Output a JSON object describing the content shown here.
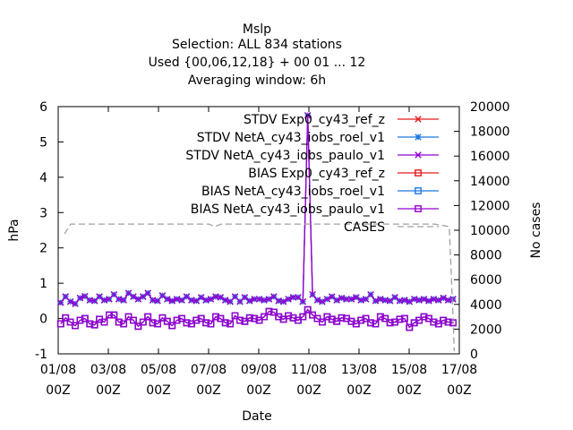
{
  "chart_data": {
    "type": "line",
    "title": "Mslp",
    "subtitle_lines": [
      "Selection: ALL    834 stations",
      "Used {00,06,12,18} + 00 01 ... 12",
      "Averaging window:  6h"
    ],
    "xlabel": "Date",
    "ylabel": "hPa",
    "y2label": "No cases",
    "x_ticks": [
      {
        "d": 0,
        "line1": "01/08",
        "line2": "00Z"
      },
      {
        "d": 2,
        "line1": "03/08",
        "line2": "00Z"
      },
      {
        "d": 4,
        "line1": "05/08",
        "line2": "00Z"
      },
      {
        "d": 6,
        "line1": "07/08",
        "line2": "00Z"
      },
      {
        "d": 8,
        "line1": "09/08",
        "line2": "00Z"
      },
      {
        "d": 10,
        "line1": "11/08",
        "line2": "00Z"
      },
      {
        "d": 12,
        "line1": "13/08",
        "line2": "00Z"
      },
      {
        "d": 14,
        "line1": "15/08",
        "line2": "00Z"
      },
      {
        "d": 16,
        "line1": "17/08",
        "line2": "00Z"
      }
    ],
    "xlim": [
      0,
      16
    ],
    "ylim": [
      -1,
      6
    ],
    "y_ticks": [
      "-1",
      "0",
      "1",
      "2",
      "3",
      "4",
      "5",
      "6"
    ],
    "y2lim": [
      0,
      20000
    ],
    "y2_ticks": [
      "0",
      "2000",
      "4000",
      "6000",
      "8000",
      "10000",
      "12000",
      "14000",
      "16000",
      "18000",
      "20000"
    ],
    "grid": false,
    "legend_position": "top-right inside",
    "series": [
      {
        "name": "STDV Exp0_cy43_ref_z",
        "color": "#e41a1c",
        "marker": "x",
        "axis": "y",
        "values": [
          0.45,
          0.62,
          0.48,
          0.42,
          0.58,
          0.63,
          0.52,
          0.5,
          0.62,
          0.52,
          0.55,
          0.68,
          0.55,
          0.52,
          0.72,
          0.62,
          0.55,
          0.62,
          0.72,
          0.52,
          0.5,
          0.65,
          0.55,
          0.5,
          0.55,
          0.52,
          0.62,
          0.52,
          0.5,
          0.6,
          0.52,
          0.55,
          0.62,
          0.6,
          0.52,
          0.48,
          0.62,
          0.48,
          0.6,
          0.5,
          0.55,
          0.55,
          0.52,
          0.55,
          0.62,
          0.5,
          0.48,
          0.55,
          0.6,
          0.6,
          0.48,
          5.75,
          0.68,
          0.52,
          0.48,
          0.55,
          0.62,
          0.52,
          0.58,
          0.55,
          0.55,
          0.6,
          0.52,
          0.55,
          0.68,
          0.5,
          0.55,
          0.52,
          0.5,
          0.6,
          0.5,
          0.52,
          0.48,
          0.55,
          0.52,
          0.55,
          0.5,
          0.55,
          0.52,
          0.58,
          0.52,
          0.55
        ]
      },
      {
        "name": "STDV NetA_cy43_iobs_roel_v1",
        "color": "#1f78e0",
        "marker": "*",
        "axis": "y",
        "values": [
          0.45,
          0.62,
          0.48,
          0.42,
          0.58,
          0.63,
          0.52,
          0.5,
          0.62,
          0.52,
          0.55,
          0.68,
          0.55,
          0.52,
          0.72,
          0.62,
          0.55,
          0.62,
          0.72,
          0.52,
          0.5,
          0.65,
          0.55,
          0.5,
          0.55,
          0.52,
          0.62,
          0.52,
          0.5,
          0.6,
          0.52,
          0.55,
          0.62,
          0.6,
          0.52,
          0.48,
          0.62,
          0.48,
          0.6,
          0.5,
          0.55,
          0.55,
          0.52,
          0.55,
          0.62,
          0.5,
          0.48,
          0.55,
          0.6,
          0.6,
          0.48,
          5.75,
          0.68,
          0.52,
          0.48,
          0.55,
          0.62,
          0.52,
          0.58,
          0.55,
          0.55,
          0.6,
          0.52,
          0.55,
          0.68,
          0.5,
          0.55,
          0.52,
          0.5,
          0.6,
          0.5,
          0.52,
          0.48,
          0.55,
          0.52,
          0.55,
          0.5,
          0.55,
          0.52,
          0.58,
          0.52,
          0.55
        ]
      },
      {
        "name": "STDV NetA_cy43_iobs_paulo_v1",
        "color": "#9400d3",
        "marker": "x",
        "axis": "y",
        "values": [
          0.45,
          0.62,
          0.48,
          0.42,
          0.58,
          0.63,
          0.52,
          0.5,
          0.62,
          0.52,
          0.55,
          0.68,
          0.55,
          0.52,
          0.72,
          0.62,
          0.55,
          0.62,
          0.72,
          0.52,
          0.5,
          0.65,
          0.55,
          0.5,
          0.55,
          0.52,
          0.62,
          0.52,
          0.5,
          0.6,
          0.52,
          0.55,
          0.62,
          0.6,
          0.52,
          0.48,
          0.62,
          0.48,
          0.6,
          0.5,
          0.55,
          0.55,
          0.52,
          0.55,
          0.62,
          0.5,
          0.48,
          0.55,
          0.6,
          0.6,
          0.48,
          5.75,
          0.68,
          0.52,
          0.48,
          0.55,
          0.62,
          0.52,
          0.58,
          0.55,
          0.55,
          0.6,
          0.52,
          0.55,
          0.68,
          0.5,
          0.55,
          0.52,
          0.5,
          0.6,
          0.5,
          0.52,
          0.48,
          0.55,
          0.52,
          0.55,
          0.5,
          0.55,
          0.52,
          0.58,
          0.52,
          0.55
        ]
      },
      {
        "name": "BIAS Exp0_cy43_ref_z",
        "color": "#e41a1c",
        "marker": "square",
        "axis": "y",
        "values": [
          -0.15,
          0.02,
          -0.1,
          -0.2,
          -0.05,
          0.0,
          -0.15,
          -0.18,
          -0.02,
          -0.1,
          0.1,
          0.1,
          -0.1,
          -0.15,
          0.05,
          -0.05,
          -0.22,
          -0.1,
          0.05,
          -0.12,
          -0.15,
          0.02,
          -0.08,
          -0.2,
          -0.05,
          0.0,
          -0.12,
          -0.15,
          -0.05,
          0.0,
          -0.12,
          -0.15,
          0.05,
          0.0,
          -0.12,
          -0.15,
          0.08,
          -0.05,
          -0.08,
          0.02,
          0.0,
          -0.05,
          0.05,
          0.2,
          0.18,
          0.05,
          -0.02,
          0.08,
          0.02,
          -0.05,
          0.05,
          0.25,
          0.1,
          0.0,
          -0.1,
          0.05,
          -0.02,
          -0.08,
          0.02,
          0.0,
          -0.08,
          -0.15,
          -0.05,
          0.0,
          -0.12,
          -0.15,
          0.05,
          0.0,
          -0.12,
          -0.1,
          -0.02,
          0.0,
          -0.25,
          -0.12,
          -0.05,
          0.05,
          0.0,
          -0.1,
          -0.15,
          -0.05,
          -0.1,
          -0.12
        ]
      },
      {
        "name": "BIAS NetA_cy43_iobs_roel_v1",
        "color": "#1f78e0",
        "marker": "square",
        "axis": "y",
        "values": [
          -0.15,
          0.02,
          -0.1,
          -0.2,
          -0.05,
          0.0,
          -0.15,
          -0.18,
          -0.02,
          -0.1,
          0.1,
          0.1,
          -0.1,
          -0.15,
          0.05,
          -0.05,
          -0.22,
          -0.1,
          0.05,
          -0.12,
          -0.15,
          0.02,
          -0.08,
          -0.2,
          -0.05,
          0.0,
          -0.12,
          -0.15,
          -0.05,
          0.0,
          -0.12,
          -0.15,
          0.05,
          0.0,
          -0.12,
          -0.15,
          0.08,
          -0.05,
          -0.08,
          0.02,
          0.0,
          -0.05,
          0.05,
          0.2,
          0.18,
          0.05,
          -0.02,
          0.08,
          0.02,
          -0.05,
          0.05,
          0.25,
          0.1,
          0.0,
          -0.1,
          0.05,
          -0.02,
          -0.08,
          0.02,
          0.0,
          -0.08,
          -0.15,
          -0.05,
          0.0,
          -0.12,
          -0.15,
          0.05,
          0.0,
          -0.12,
          -0.1,
          -0.02,
          0.0,
          -0.25,
          -0.12,
          -0.05,
          0.05,
          0.0,
          -0.1,
          -0.15,
          -0.05,
          -0.1,
          -0.12
        ]
      },
      {
        "name": "BIAS NetA_cy43_iobs_paulo_v1",
        "color": "#9400d3",
        "marker": "square",
        "axis": "y",
        "values": [
          -0.15,
          0.02,
          -0.1,
          -0.2,
          -0.05,
          0.0,
          -0.15,
          -0.18,
          -0.02,
          -0.1,
          0.1,
          0.1,
          -0.1,
          -0.15,
          0.05,
          -0.05,
          -0.22,
          -0.1,
          0.05,
          -0.12,
          -0.15,
          0.02,
          -0.08,
          -0.2,
          -0.05,
          0.0,
          -0.12,
          -0.15,
          -0.05,
          0.0,
          -0.12,
          -0.15,
          0.05,
          0.0,
          -0.12,
          -0.15,
          0.08,
          -0.05,
          -0.08,
          0.02,
          0.0,
          -0.05,
          0.05,
          0.2,
          0.18,
          0.05,
          -0.02,
          0.08,
          0.02,
          -0.05,
          0.05,
          0.25,
          0.1,
          0.0,
          -0.1,
          0.05,
          -0.02,
          -0.08,
          0.02,
          0.0,
          -0.08,
          -0.15,
          -0.05,
          0.0,
          -0.12,
          -0.15,
          0.05,
          0.0,
          -0.12,
          -0.1,
          -0.02,
          0.0,
          -0.25,
          -0.12,
          -0.05,
          0.05,
          0.0,
          -0.1,
          -0.15,
          -0.05,
          -0.1,
          -0.12
        ]
      },
      {
        "name": "CASES",
        "color": "#a0a0a0",
        "marker": "none",
        "dash": "dashed",
        "axis": "y2",
        "points": [
          [
            0.25,
            9700
          ],
          [
            0.5,
            10500
          ],
          [
            0.75,
            10500
          ],
          [
            5.75,
            10500
          ],
          [
            6.0,
            10500
          ],
          [
            6.25,
            10300
          ],
          [
            6.5,
            10500
          ],
          [
            7.0,
            10500
          ],
          [
            15.0,
            10500
          ],
          [
            15.3,
            10400
          ],
          [
            15.6,
            10300
          ],
          [
            15.75,
            3000
          ],
          [
            15.8,
            200
          ]
        ]
      }
    ]
  }
}
